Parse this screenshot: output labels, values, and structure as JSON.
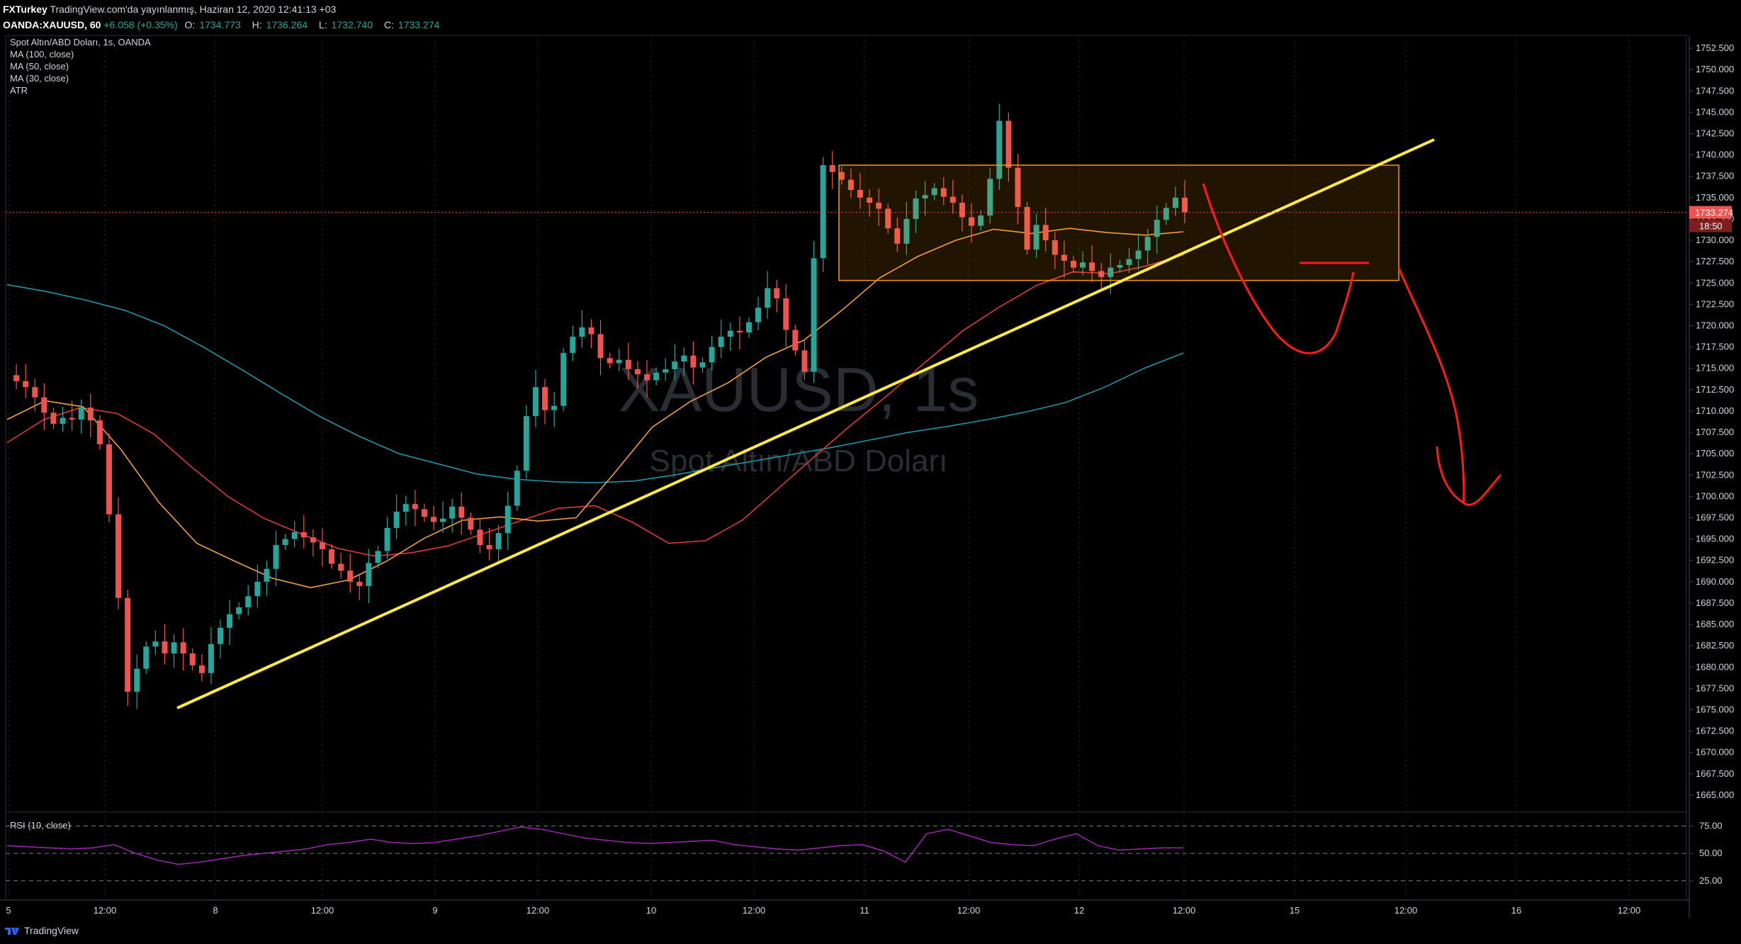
{
  "header": {
    "publisher": "FXTurkey",
    "published_text": "TradingView.com'da yayınlanmış, Haziran 12, 2020 12:41:13 +03",
    "symbol": "OANDA:XAUUSD, 60",
    "ohlc": {
      "change": "+6.058 (+0.35%)",
      "open_label": "O:",
      "open": "1734.773",
      "high_label": "H:",
      "high": "1736.264",
      "low_label": "L:",
      "low": "1732.740",
      "close_label": "C:",
      "close": "1733.274"
    }
  },
  "legend": {
    "title": "Spot Altın/ABD Doları, 1s, OANDA",
    "indicators": [
      "MA (100, close)",
      "MA (50, close)",
      "MA (30, close)",
      "ATR"
    ]
  },
  "watermark": {
    "symbol": "XAUUSD, 1s",
    "name": "Spot Altın/ABD Doları"
  },
  "price_tag": {
    "price": "1733.274",
    "countdown": "18:50"
  },
  "rsi": {
    "label": "RSI (10, close)",
    "levels": [
      75,
      50,
      25
    ]
  },
  "footer": {
    "brand": "TradingView"
  },
  "colors": {
    "up": "#26a69a",
    "down": "#ef5350",
    "ma100": "#2196a6",
    "ma50": "#e0393b",
    "ma30": "#f0a03a",
    "trendline": "#ffeb3b",
    "drawing": "#ff1a1a",
    "rsi": "#9c27b0",
    "box": "#ff9800"
  },
  "chart_data": {
    "type": "candlestick",
    "y_range": [
      1663,
      1754
    ],
    "y_ticks": [
      1665,
      1667.5,
      1670,
      1672.5,
      1675,
      1677.5,
      1680,
      1682.5,
      1685,
      1687.5,
      1690,
      1692.5,
      1695,
      1697.5,
      1700,
      1702.5,
      1705,
      1707.5,
      1710,
      1712.5,
      1715,
      1717.5,
      1720,
      1722.5,
      1725,
      1727.5,
      1730,
      1732.5,
      1735,
      1737.5,
      1740,
      1742.5,
      1745,
      1747.5,
      1750,
      1752.5
    ],
    "y_tick_labels": [
      "1665.000",
      "1667.500",
      "1670.000",
      "1672.500",
      "1675.000",
      "1677.500",
      "1680.000",
      "1682.500",
      "1685.000",
      "1687.500",
      "1690.000",
      "1692.500",
      "1695.000",
      "1697.500",
      "1700.000",
      "1702.500",
      "1705.000",
      "1707.500",
      "1710.000",
      "1712.500",
      "1715.000",
      "1717.500",
      "1720.000",
      "1722.500",
      "1725.000",
      "1727.500",
      "1730.000",
      "1732.500",
      "1735.000",
      "1737.500",
      "1740.000",
      "1742.500",
      "1745.000",
      "1747.500",
      "1750.000",
      "1752.500"
    ],
    "x_labels": [
      "5",
      "12:00",
      "8",
      "12:00",
      "9",
      "12:00",
      "10",
      "12:00",
      "11",
      "12:00",
      "12",
      "12:00",
      "15",
      "12:00",
      "16",
      "12:00"
    ],
    "close_path": [
      1714.2,
      1713.5,
      1712.8,
      1711.6,
      1709.8,
      1708.5,
      1709.2,
      1709.0,
      1710.4,
      1708.9,
      1706.1,
      1697.9,
      1688.1,
      1677.1,
      1679.8,
      1682.4,
      1683.0,
      1681.6,
      1682.9,
      1681.6,
      1680.2,
      1679.3,
      1682.7,
      1684.6,
      1686.2,
      1687.0,
      1688.3,
      1690.0,
      1691.5,
      1694.3,
      1695.0,
      1695.8,
      1695.2,
      1694.6,
      1693.8,
      1692.1,
      1691.3,
      1690.0,
      1689.5,
      1692.2,
      1693.6,
      1696.3,
      1698.2,
      1699.1,
      1698.5,
      1697.6,
      1697.0,
      1697.4,
      1698.8,
      1697.5,
      1696.1,
      1694.3,
      1693.8,
      1695.7,
      1698.9,
      1703.0,
      1709.4,
      1712.8,
      1710.1,
      1710.6,
      1716.8,
      1718.7,
      1719.8,
      1719.0,
      1716.2,
      1715.6,
      1716.0,
      1714.9,
      1714.3,
      1713.6,
      1714.5,
      1714.9,
      1715.8,
      1716.5,
      1715.1,
      1715.7,
      1717.5,
      1718.7,
      1719.4,
      1719.2,
      1720.4,
      1722.1,
      1724.4,
      1723.2,
      1719.5,
      1717.1,
      1714.6,
      1727.9,
      1738.8,
      1738.0,
      1737.1,
      1735.9,
      1735.0,
      1734.4,
      1733.7,
      1731.4,
      1729.6,
      1732.5,
      1734.9,
      1735.3,
      1736.1,
      1735.1,
      1734.4,
      1732.7,
      1731.7,
      1732.9,
      1737.2,
      1744.0,
      1738.5,
      1733.9,
      1728.9,
      1731.8,
      1730.0,
      1728.3,
      1727.6,
      1726.8,
      1727.4,
      1726.4,
      1725.7,
      1726.8,
      1727.1,
      1727.8,
      1728.8,
      1730.4,
      1732.4,
      1733.8,
      1735.0,
      1733.3
    ],
    "ma100": [
      1724.8,
      1724.0,
      1723.0,
      1721.8,
      1720.0,
      1717.5,
      1714.8,
      1712.0,
      1709.3,
      1707.0,
      1705.0,
      1703.8,
      1702.6,
      1702.0,
      1701.7,
      1701.6,
      1701.8,
      1702.5,
      1703.3,
      1704.1,
      1704.9,
      1705.7,
      1706.6,
      1707.5,
      1708.2,
      1709.0,
      1709.9,
      1711.0,
      1712.8,
      1715.0,
      1716.8
    ],
    "ma50": [
      1706.3,
      1709.0,
      1710.4,
      1709.7,
      1707.3,
      1703.5,
      1700.0,
      1697.4,
      1695.6,
      1693.9,
      1693.0,
      1693.4,
      1694.2,
      1695.7,
      1697.2,
      1698.6,
      1698.9,
      1697.0,
      1694.5,
      1694.8,
      1697.2,
      1701.0,
      1704.8,
      1708.5,
      1712.0,
      1715.8,
      1719.4,
      1722.2,
      1724.7,
      1726.3,
      1726.1,
      1727.0,
      1728.3
    ],
    "ma30": [
      1709.0,
      1711.2,
      1710.5,
      1705.5,
      1699.3,
      1694.5,
      1692.4,
      1690.4,
      1689.3,
      1690.2,
      1692.4,
      1695.1,
      1697.2,
      1697.6,
      1697.1,
      1697.5,
      1702.7,
      1708.1,
      1711.1,
      1713.3,
      1716.3,
      1718.3,
      1721.8,
      1725.6,
      1728.1,
      1730.0,
      1731.3,
      1730.8,
      1731.4,
      1730.9,
      1730.6,
      1731.0
    ],
    "rsi_values": [
      57,
      56,
      55,
      54,
      55,
      58,
      50,
      44,
      40,
      42,
      45,
      48,
      50,
      52,
      54,
      58,
      60,
      63,
      60,
      59,
      60,
      63,
      66,
      70,
      74,
      72,
      68,
      64,
      62,
      60,
      59,
      60,
      61,
      62,
      58,
      56,
      54,
      53,
      55,
      57,
      58,
      52,
      42,
      68,
      72,
      66,
      60,
      58,
      57,
      63,
      68,
      57,
      53,
      54,
      55,
      55
    ]
  }
}
